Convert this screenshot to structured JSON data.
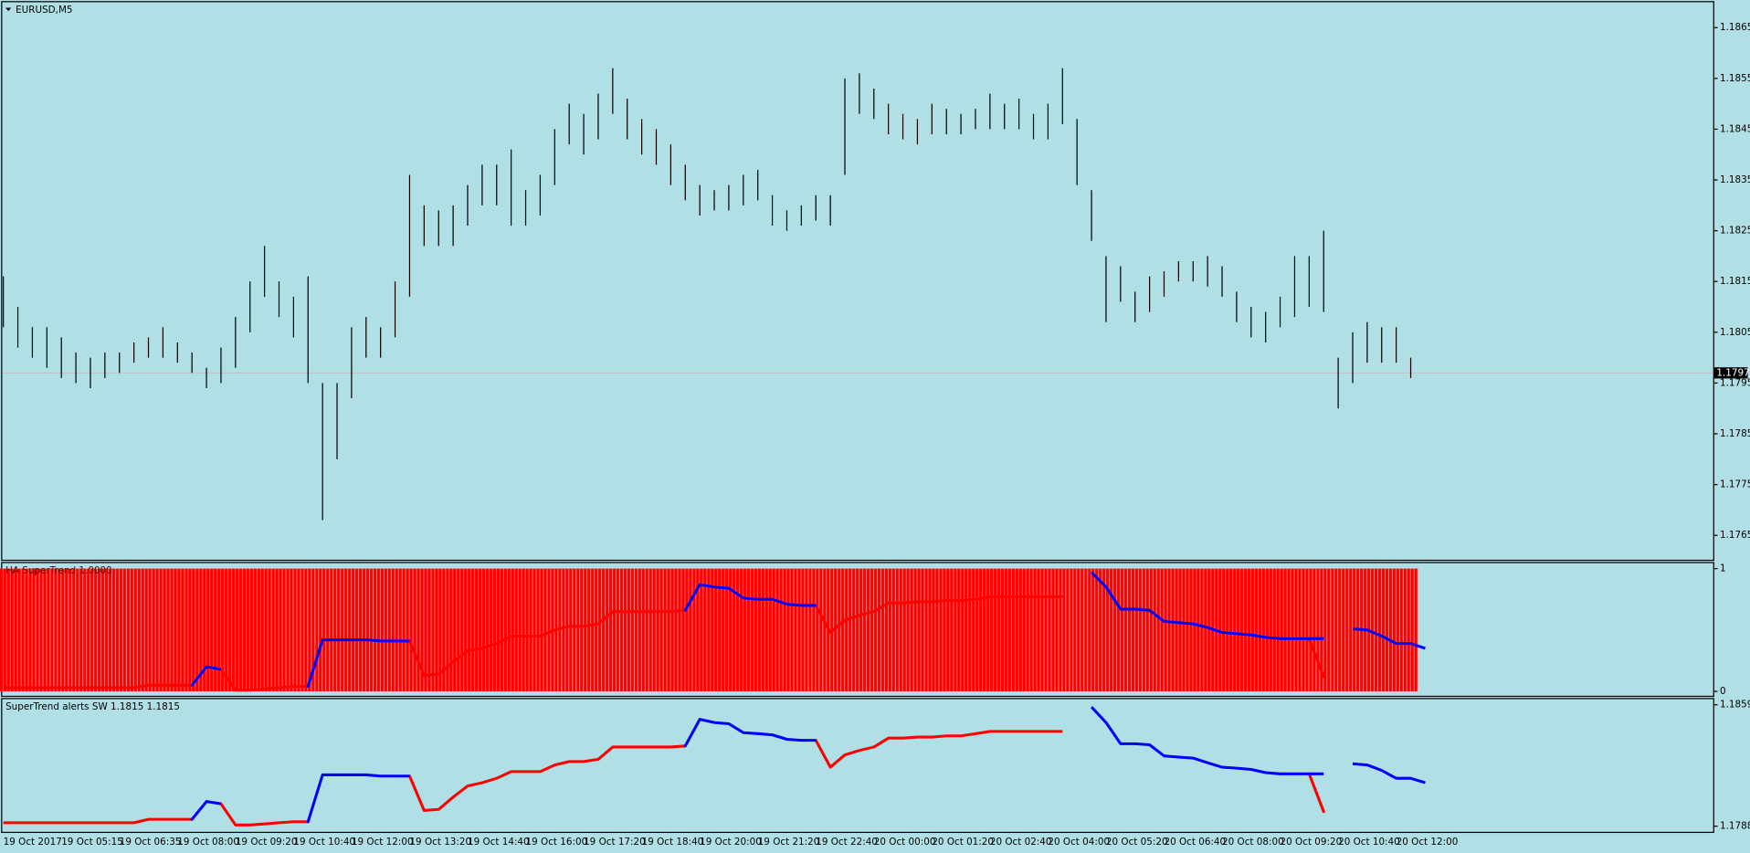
{
  "chart_data": [
    {
      "type": "ohlc",
      "title": "EURUSD,M5",
      "color": "#000000",
      "background": "#b0e0e6",
      "categories": [
        "19 Oct 2017",
        null,
        null,
        null,
        "19 Oct 05:15",
        null,
        null,
        null,
        "19 Oct 06:35",
        null,
        null,
        null,
        "19 Oct 08:00",
        null,
        null,
        null,
        "19 Oct 09:20",
        null,
        null,
        null,
        "19 Oct 10:40",
        null,
        null,
        null,
        "19 Oct 12:00",
        null,
        null,
        null,
        "19 Oct 13:20",
        null,
        null,
        null,
        "19 Oct 14:40",
        null,
        null,
        null,
        "19 Oct 16:00",
        null,
        null,
        null,
        "19 Oct 17:20",
        null,
        null,
        null,
        "19 Oct 18:40",
        null,
        null,
        null,
        "19 Oct 20:00",
        null,
        null,
        null,
        "19 Oct 21:20",
        null,
        null,
        null,
        "19 Oct 22:40",
        null,
        null,
        null,
        "20 Oct 00:00",
        null,
        null,
        null,
        "20 Oct 01:20",
        null,
        null,
        null,
        "20 Oct 02:40",
        null,
        null,
        null,
        "20 Oct 04:00",
        null,
        null,
        null,
        "20 Oct 05:20",
        null,
        null,
        null,
        "20 Oct 06:40",
        null,
        null,
        null,
        "20 Oct 08:00",
        null,
        null,
        null,
        "20 Oct 09:20",
        null,
        null,
        null,
        "20 Oct 10:40",
        null,
        null,
        null,
        "20 Oct 12:00",
        null
      ],
      "high": [
        1.1816,
        1.181,
        1.1806,
        1.1806,
        1.1804,
        1.1801,
        1.18,
        1.1801,
        1.1801,
        1.1803,
        1.1804,
        1.1806,
        1.1803,
        1.1801,
        1.1798,
        1.1802,
        1.1808,
        1.1815,
        1.1822,
        1.1815,
        1.1812,
        1.1816,
        1.1795,
        1.1795,
        1.1806,
        1.1808,
        1.1806,
        1.1815,
        1.1836,
        1.183,
        1.1829,
        1.183,
        1.1834,
        1.1838,
        1.1838,
        1.1841,
        1.1833,
        1.1836,
        1.1845,
        1.185,
        1.1848,
        1.1852,
        1.1857,
        1.1851,
        1.1847,
        1.1845,
        1.1842,
        1.1838,
        1.1834,
        1.1833,
        1.1834,
        1.1836,
        1.1837,
        1.1832,
        1.1829,
        1.183,
        1.1832,
        1.1832,
        1.1855,
        1.1856,
        1.1853,
        1.185,
        1.1848,
        1.1847,
        1.185,
        1.1849,
        1.1848,
        1.1849,
        1.1852,
        1.185,
        1.1851,
        1.1848,
        1.185,
        1.1857,
        1.1847,
        1.1833,
        1.182,
        1.1818,
        1.1813,
        1.1816,
        1.1817,
        1.1819,
        1.1819,
        1.182,
        1.1818,
        1.1813,
        1.181,
        1.1809,
        1.1812,
        1.182,
        1.182,
        1.1825,
        1.18,
        1.1805,
        1.1807,
        1.1806,
        1.1806,
        1.18
      ],
      "low": [
        1.1806,
        1.1802,
        1.18,
        1.1798,
        1.1796,
        1.1795,
        1.1794,
        1.1796,
        1.1797,
        1.1799,
        1.18,
        1.18,
        1.1799,
        1.1797,
        1.1794,
        1.1795,
        1.1798,
        1.1805,
        1.1812,
        1.1808,
        1.1804,
        1.1795,
        1.1768,
        1.178,
        1.1792,
        1.18,
        1.18,
        1.1804,
        1.1812,
        1.1822,
        1.1822,
        1.1822,
        1.1826,
        1.183,
        1.183,
        1.1826,
        1.1826,
        1.1828,
        1.1834,
        1.1842,
        1.184,
        1.1843,
        1.1848,
        1.1843,
        1.184,
        1.1838,
        1.1834,
        1.1831,
        1.1828,
        1.1829,
        1.1829,
        1.183,
        1.1831,
        1.1826,
        1.1825,
        1.1826,
        1.1827,
        1.1826,
        1.1836,
        1.1848,
        1.1847,
        1.1844,
        1.1843,
        1.1842,
        1.1844,
        1.1844,
        1.1844,
        1.1845,
        1.1845,
        1.1845,
        1.1845,
        1.1843,
        1.1843,
        1.1846,
        1.1834,
        1.1823,
        1.1807,
        1.1811,
        1.1807,
        1.1809,
        1.1812,
        1.1815,
        1.1815,
        1.1814,
        1.1812,
        1.1807,
        1.1804,
        1.1803,
        1.1806,
        1.1808,
        1.181,
        1.1809,
        1.179,
        1.1795,
        1.1799,
        1.1799,
        1.1799,
        1.1796
      ],
      "last_price": 1.1797,
      "ylim": [
        1.17602,
        1.187
      ],
      "yticks": [
        1.1765,
        1.1775,
        1.1785,
        1.1795,
        1.1805,
        1.1815,
        1.1825,
        1.1835,
        1.1845,
        1.1855,
        1.1865
      ]
    },
    {
      "type": "histogram",
      "title": "HA SuperTrend 1.0000",
      "color": "#ff0000",
      "values": [
        1,
        1,
        1,
        1,
        1,
        1,
        1,
        1,
        1,
        1,
        1,
        1,
        1,
        1,
        1,
        1,
        1,
        1,
        1,
        1,
        1,
        1,
        1,
        1,
        1,
        1,
        1,
        1,
        1,
        1,
        1,
        1,
        1,
        1,
        1,
        1,
        1,
        1,
        1,
        1,
        1,
        1,
        1,
        1,
        1,
        1,
        1,
        1,
        1,
        1,
        1,
        1,
        1,
        1,
        1,
        1,
        1,
        1,
        1,
        1,
        1,
        1,
        1,
        1,
        1,
        1,
        1,
        1,
        1,
        1,
        1,
        1,
        1,
        1,
        1,
        1,
        1,
        1,
        1,
        1,
        1,
        1,
        1,
        1,
        1,
        1,
        1,
        1,
        1,
        1,
        1,
        1,
        1,
        1,
        1,
        1,
        1,
        1
      ],
      "series": [
        {
          "color": "#ff0000",
          "values": [
            0.03,
            0.03,
            0.03,
            0.03,
            0.03,
            0.03,
            0.03,
            0.03,
            0.03,
            0.03,
            0.05,
            0.05,
            0.05,
            0.05,
            null,
            null,
            0.01,
            0.01,
            0.02,
            0.03,
            0.04,
            0.04,
            null,
            null,
            null,
            null,
            null,
            null,
            null,
            0.13,
            0.14,
            0.24,
            0.33,
            0.35,
            0.39,
            0.45,
            0.45,
            0.45,
            0.5,
            0.53,
            0.53,
            0.55,
            0.65,
            0.65,
            0.65,
            0.65,
            0.65,
            0.66,
            null,
            null,
            null,
            null,
            null,
            null,
            null,
            null,
            null,
            0.48,
            0.58,
            0.62,
            0.65,
            0.72,
            0.72,
            0.73,
            0.73,
            0.74,
            0.74,
            0.75,
            0.77,
            0.77,
            0.77,
            0.77,
            0.77,
            0.77,
            null,
            null,
            null,
            null,
            null,
            null,
            null,
            null,
            null,
            null,
            null,
            null,
            null,
            null,
            null,
            null,
            null,
            0.12,
            null,
            null,
            null,
            null,
            null,
            null
          ]
        },
        {
          "color": "#0000ff",
          "values": [
            null,
            null,
            null,
            null,
            null,
            null,
            null,
            null,
            null,
            null,
            null,
            null,
            null,
            null,
            0.2,
            0.18,
            null,
            null,
            null,
            null,
            null,
            null,
            0.42,
            0.42,
            0.42,
            0.42,
            0.41,
            0.41,
            0.41,
            null,
            null,
            null,
            null,
            null,
            null,
            null,
            null,
            null,
            null,
            null,
            null,
            null,
            null,
            null,
            null,
            null,
            null,
            null,
            0.87,
            0.85,
            0.84,
            0.76,
            0.75,
            0.75,
            0.71,
            0.7,
            0.7,
            null,
            null,
            null,
            null,
            null,
            null,
            null,
            null,
            null,
            null,
            null,
            null,
            null,
            null,
            null,
            null,
            null,
            null,
            0.97,
            0.85,
            0.67,
            0.67,
            0.66,
            0.57,
            0.56,
            0.55,
            0.52,
            0.48,
            0.47,
            0.46,
            0.44,
            0.43,
            0.43,
            0.43,
            0.43,
            null,
            0.51,
            0.5,
            0.45,
            0.39,
            0.39,
            0.35
          ]
        }
      ],
      "ylim": [
        -0.036,
        1.045
      ],
      "yticks": [
        0,
        1
      ]
    },
    {
      "type": "line",
      "title": "SuperTrend alerts SW 1.1815 1.1815",
      "series": [
        {
          "color": "#ff0000",
          "values": [
            1.179,
            1.179,
            1.179,
            1.179,
            1.179,
            1.179,
            1.179,
            1.179,
            1.179,
            1.179,
            1.1792,
            1.1792,
            1.1792,
            1.1792,
            null,
            null,
            1.17887,
            1.17887,
            1.17893,
            1.179,
            1.17906,
            1.17906,
            null,
            null,
            null,
            null,
            null,
            null,
            null,
            1.17972,
            1.17978,
            1.1805,
            1.18115,
            1.18134,
            1.1816,
            1.18199,
            1.18199,
            1.18199,
            1.18238,
            1.18258,
            1.18258,
            1.18271,
            1.18343,
            1.18343,
            1.18343,
            1.18343,
            1.18343,
            1.18349,
            null,
            null,
            null,
            null,
            null,
            null,
            null,
            null,
            null,
            1.18225,
            1.18297,
            1.18323,
            1.18343,
            1.18395,
            1.18395,
            1.18401,
            1.18401,
            1.18408,
            1.18408,
            1.18421,
            1.18434,
            1.18434,
            1.18434,
            1.18434,
            1.18434,
            1.18434,
            null,
            null,
            null,
            null,
            null,
            null,
            null,
            null,
            null,
            null,
            null,
            null,
            null,
            null,
            null,
            null,
            null,
            1.17965,
            null,
            null,
            null,
            null,
            null,
            null
          ]
        },
        {
          "color": "#0000ff",
          "values": [
            null,
            null,
            null,
            null,
            null,
            null,
            null,
            null,
            null,
            null,
            null,
            null,
            null,
            null,
            1.18024,
            1.18011,
            null,
            null,
            null,
            null,
            null,
            null,
            1.1818,
            1.1818,
            1.1818,
            1.1818,
            1.18173,
            1.18173,
            1.18173,
            null,
            null,
            null,
            null,
            null,
            null,
            null,
            null,
            null,
            null,
            null,
            null,
            null,
            null,
            null,
            null,
            null,
            null,
            null,
            1.18505,
            1.18486,
            1.18479,
            1.18427,
            1.18421,
            1.18414,
            1.18388,
            1.18382,
            1.18382,
            null,
            null,
            null,
            null,
            null,
            null,
            null,
            null,
            null,
            null,
            null,
            null,
            null,
            null,
            null,
            null,
            null,
            null,
            1.18577,
            1.18486,
            1.18362,
            1.18362,
            1.18356,
            1.18291,
            1.18284,
            1.18278,
            1.18251,
            1.18225,
            1.18219,
            1.18212,
            1.18193,
            1.18186,
            1.18186,
            1.18186,
            1.18186,
            null,
            1.18245,
            1.18238,
            1.18206,
            1.1816,
            1.1816,
            1.18134
          ]
        }
      ],
      "ylim": [
        1.17847,
        1.18623
      ],
      "yticks": [
        1.1788,
        1.1859
      ]
    }
  ]
}
